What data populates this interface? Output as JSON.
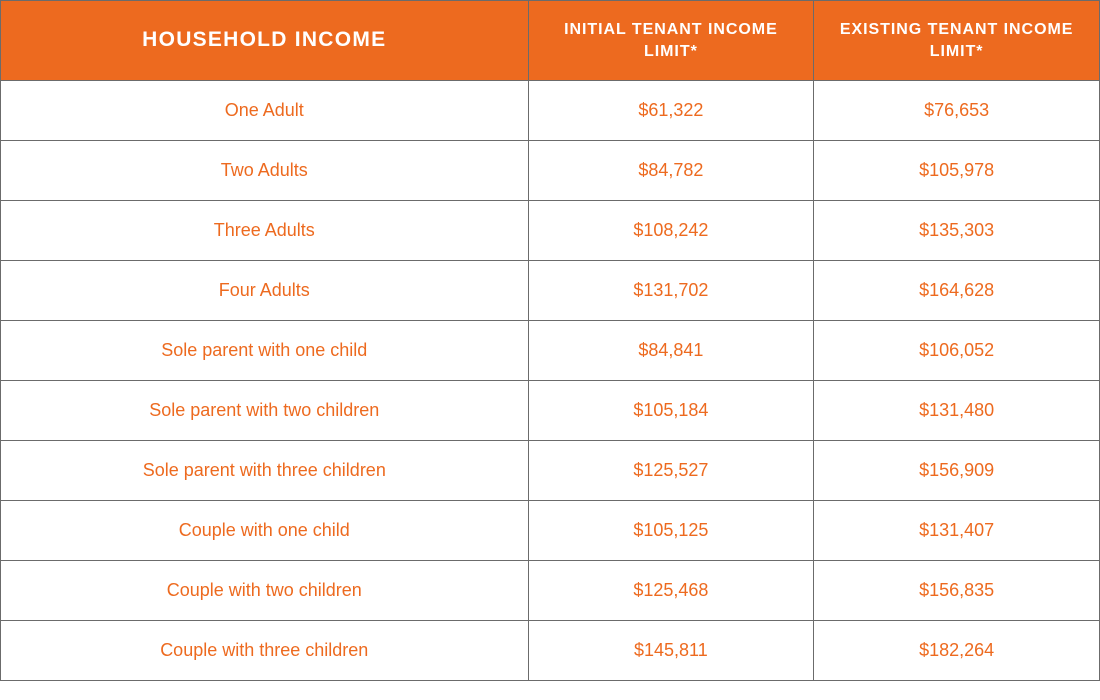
{
  "table": {
    "type": "table",
    "colors": {
      "header_bg": "#ed6a1f",
      "header_fg": "#ffffff",
      "cell_fg": "#ed6a1f",
      "cell_bg": "#ffffff",
      "border": "#6b6b6b"
    },
    "typography": {
      "header_fontsize_main": 21,
      "header_fontsize_sub": 16,
      "cell_fontsize": 18,
      "header_weight": 700,
      "cell_weight": 400,
      "header_letter_spacing_em": 0.06
    },
    "column_widths_pct": [
      48,
      26,
      26
    ],
    "columns": [
      "HOUSEHOLD INCOME",
      "INITIAL TENANT INCOME LIMIT*",
      "EXISTING TENANT INCOME LIMIT*"
    ],
    "rows": [
      {
        "label": "One Adult",
        "initial": "$61,322",
        "existing": "$76,653"
      },
      {
        "label": "Two Adults",
        "initial": "$84,782",
        "existing": "$105,978"
      },
      {
        "label": "Three Adults",
        "initial": "$108,242",
        "existing": "$135,303"
      },
      {
        "label": "Four Adults",
        "initial": "$131,702",
        "existing": "$164,628"
      },
      {
        "label": "Sole parent with one child",
        "initial": "$84,841",
        "existing": "$106,052"
      },
      {
        "label": "Sole parent with two children",
        "initial": "$105,184",
        "existing": "$131,480"
      },
      {
        "label": "Sole parent with three children",
        "initial": "$125,527",
        "existing": "$156,909"
      },
      {
        "label": "Couple with one child",
        "initial": "$105,125",
        "existing": "$131,407"
      },
      {
        "label": "Couple with two children",
        "initial": "$125,468",
        "existing": "$156,835"
      },
      {
        "label": "Couple with three children",
        "initial": "$145,811",
        "existing": "$182,264"
      }
    ]
  }
}
